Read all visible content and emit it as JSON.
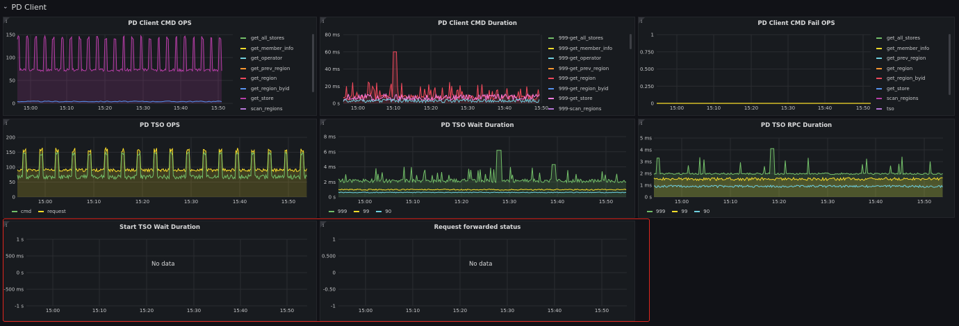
{
  "row": {
    "title": "PD Client",
    "chevron_icon": "chevron-down-icon"
  },
  "colors": {
    "green": "#73bf69",
    "yellow": "#fade2a",
    "cyan": "#8ab8ff",
    "lightcyan": "#6ed0e0",
    "orange": "#ff9830",
    "red": "#f2495c",
    "blue": "#5794f2",
    "pink": "#ff7ddf",
    "purple": "#b877d9",
    "magenta": "#b83ea8",
    "highlight": "#e0271e"
  },
  "panels": {
    "cmd_ops": {
      "title": "PD Client CMD OPS",
      "y_ticks": [
        "150",
        "100",
        "50",
        "0"
      ],
      "x_ticks": [
        "15:00",
        "15:10",
        "15:20",
        "15:30",
        "15:40",
        "15:50"
      ],
      "legend": [
        "get_all_stores",
        "get_member_info",
        "get_operator",
        "get_prev_region",
        "get_region",
        "get_region_byid",
        "get_store",
        "scan_regions"
      ]
    },
    "cmd_duration": {
      "title": "PD Client CMD Duration",
      "y_ticks": [
        "80 ms",
        "60 ms",
        "40 ms",
        "20 ms",
        "0 s"
      ],
      "x_ticks": [
        "15:00",
        "15:10",
        "15:20",
        "15:30",
        "15:40",
        "15:50"
      ],
      "legend": [
        "999-get_all_stores",
        "999-get_member_info",
        "999-get_operator",
        "999-get_prev_region",
        "999-get_region",
        "999-get_region_byid",
        "999-get_store",
        "999-scan_regions"
      ]
    },
    "cmd_fail_ops": {
      "title": "PD Client CMD Fail OPS",
      "y_ticks": [
        "1",
        "0.750",
        "0.500",
        "0.250",
        "0"
      ],
      "x_ticks": [
        "15:00",
        "15:10",
        "15:20",
        "15:30",
        "15:40",
        "15:50"
      ],
      "legend": [
        "get_all_stores",
        "get_member_info",
        "get_prev_region",
        "get_region",
        "get_region_byid",
        "get_store",
        "scan_regions",
        "tso"
      ]
    },
    "tso_ops": {
      "title": "PD TSO OPS",
      "y_ticks": [
        "200",
        "150",
        "100",
        "50",
        "0"
      ],
      "x_ticks": [
        "15:00",
        "15:10",
        "15:20",
        "15:30",
        "15:40",
        "15:50"
      ],
      "legend": [
        "cmd",
        "request"
      ]
    },
    "tso_wait": {
      "title": "PD TSO Wait Duration",
      "y_ticks": [
        "8 ms",
        "6 ms",
        "4 ms",
        "2 ms",
        "0 s"
      ],
      "x_ticks": [
        "15:00",
        "15:10",
        "15:20",
        "15:30",
        "15:40",
        "15:50"
      ],
      "legend": [
        "999",
        "99",
        "90"
      ]
    },
    "tso_rpc": {
      "title": "PD TSO RPC Duration",
      "y_ticks": [
        "5 ms",
        "4 ms",
        "3 ms",
        "2 ms",
        "1 ms",
        "0 s"
      ],
      "x_ticks": [
        "15:00",
        "15:10",
        "15:20",
        "15:30",
        "15:40",
        "15:50"
      ],
      "legend": [
        "999",
        "99",
        "90"
      ]
    },
    "start_tso_wait": {
      "title": "Start TSO Wait Duration",
      "y_ticks": [
        "1 s",
        "500 ms",
        "0 s",
        "-500 ms",
        "-1 s"
      ],
      "x_ticks": [
        "15:00",
        "15:10",
        "15:20",
        "15:30",
        "15:40",
        "15:50"
      ],
      "no_data": "No data"
    },
    "forwarded": {
      "title": "Request forwarded status",
      "y_ticks": [
        "1",
        "0.500",
        "0",
        "-0.50",
        "-1"
      ],
      "x_ticks": [
        "15:00",
        "15:10",
        "15:20",
        "15:30",
        "15:40",
        "15:50"
      ],
      "no_data": "No data"
    }
  }
}
